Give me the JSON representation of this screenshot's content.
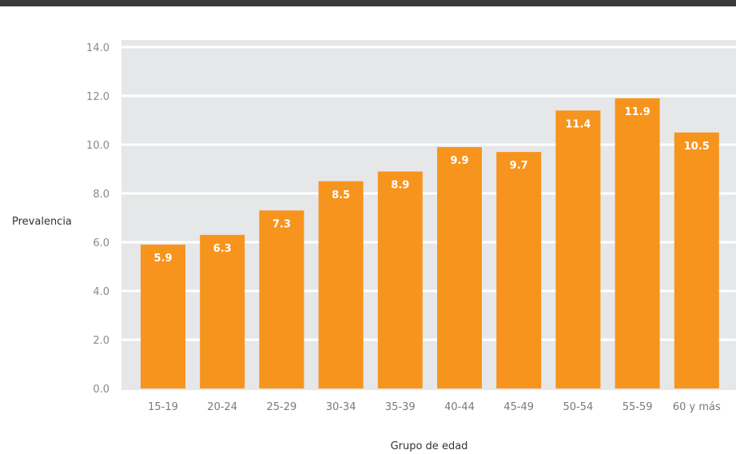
{
  "chart_data": {
    "type": "bar",
    "categories": [
      "15-19",
      "20-24",
      "25-29",
      "30-34",
      "35-39",
      "40-44",
      "45-49",
      "50-54",
      "55-59",
      "60 y más"
    ],
    "values": [
      5.9,
      6.3,
      7.3,
      8.5,
      8.9,
      9.9,
      9.7,
      11.4,
      11.9,
      10.5
    ],
    "value_labels": [
      "5.9",
      "6.3",
      "7.3",
      "8.5",
      "8.9",
      "9.9",
      "9.7",
      "11.4",
      "11.9",
      "10.5"
    ],
    "yticks": [
      "0.0",
      "2.0",
      "4.0",
      "6.0",
      "8.0",
      "10.0",
      "12.0",
      "14.0"
    ],
    "ylim": [
      0,
      14
    ],
    "xlabel": "Grupo de edad",
    "ylabel": "Prevalencia",
    "grid": true,
    "colors": {
      "bar": "#f7941d",
      "plot_background": "#e6e7e9",
      "gridline": "#ffffff"
    }
  }
}
